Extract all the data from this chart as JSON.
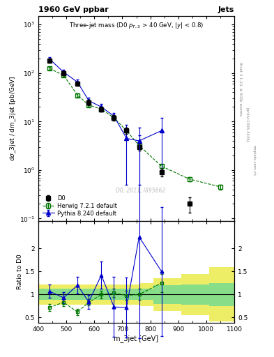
{
  "title_main": "1960 GeV ppbar",
  "title_right": "Jets",
  "watermark": "D0, 2011, I895662",
  "right_label1": "Rivet 3.1.10, ≥ 500k events",
  "right_label2": "[arXiv:1306.3436]",
  "right_label3": "mcplots.cern.ch",
  "d0_x": [
    440,
    490,
    540,
    580,
    625,
    670,
    715,
    760,
    840,
    940,
    1050
  ],
  "d0_y": [
    180,
    100,
    60,
    25,
    18,
    12,
    6.5,
    3.0,
    0.9,
    0.2,
    null
  ],
  "d0_yerr_lo": [
    15,
    10,
    5,
    3,
    2,
    1.5,
    1.0,
    0.5,
    0.15,
    0.07,
    null
  ],
  "d0_yerr_hi": [
    15,
    10,
    5,
    3,
    2,
    1.5,
    1.0,
    0.5,
    0.15,
    0.07,
    null
  ],
  "herwig_x": [
    440,
    490,
    540,
    580,
    625,
    670,
    715,
    760,
    840,
    940,
    1050
  ],
  "herwig_y": [
    125,
    90,
    35,
    22,
    18,
    12,
    6.5,
    3.2,
    1.2,
    0.65,
    0.45
  ],
  "herwig_yerr_lo": [
    8,
    6,
    3,
    2,
    1.5,
    1.0,
    0.5,
    0.3,
    0.1,
    0.06,
    0.05
  ],
  "herwig_yerr_hi": [
    8,
    6,
    3,
    2,
    1.5,
    1.0,
    0.5,
    0.3,
    0.1,
    0.06,
    0.05
  ],
  "pythia_x": [
    440,
    490,
    540,
    580,
    625,
    670,
    715,
    760,
    840
  ],
  "pythia_y": [
    195,
    105,
    65,
    27,
    20,
    13,
    4.5,
    4.0,
    6.5
  ],
  "pythia_yerr_lo": [
    18,
    12,
    8,
    4,
    3,
    2,
    4.0,
    3.5,
    5.5
  ],
  "pythia_yerr_hi": [
    18,
    12,
    8,
    4,
    3,
    2,
    4.0,
    3.5,
    5.5
  ],
  "ratio_herwig_x": [
    440,
    490,
    540,
    580,
    625,
    670,
    715,
    760,
    840,
    940,
    1050
  ],
  "ratio_herwig_y": [
    0.72,
    0.83,
    0.62,
    0.83,
    1.0,
    1.03,
    0.98,
    1.0,
    1.25,
    null,
    null
  ],
  "ratio_herwig_yerr_lo": [
    0.07,
    0.08,
    0.07,
    0.07,
    0.08,
    0.09,
    0.1,
    0.12,
    0.2,
    null,
    null
  ],
  "ratio_herwig_yerr_hi": [
    0.07,
    0.08,
    0.07,
    0.07,
    0.08,
    0.09,
    0.1,
    0.12,
    0.2,
    null,
    null
  ],
  "ratio_pythia_x": [
    440,
    490,
    540,
    580,
    625,
    670,
    715,
    760,
    840
  ],
  "ratio_pythia_y": [
    1.07,
    0.93,
    1.2,
    0.84,
    1.42,
    0.73,
    0.72,
    2.25,
    1.5
  ],
  "ratio_pythia_yerr_lo": [
    0.14,
    0.12,
    0.18,
    0.15,
    0.3,
    0.65,
    0.65,
    2.2,
    1.4
  ],
  "ratio_pythia_yerr_hi": [
    0.14,
    0.12,
    0.18,
    0.15,
    0.3,
    0.65,
    0.65,
    2.2,
    1.4
  ],
  "band_x_edges": [
    400,
    460,
    510,
    560,
    610,
    660,
    710,
    760,
    810,
    910,
    1010,
    1100
  ],
  "band_green_lo": [
    0.88,
    0.88,
    0.88,
    0.88,
    0.88,
    0.88,
    0.88,
    0.88,
    0.8,
    0.78,
    0.75
  ],
  "band_green_hi": [
    1.12,
    1.12,
    1.12,
    1.12,
    1.12,
    1.12,
    1.12,
    1.12,
    1.2,
    1.22,
    1.25
  ],
  "band_yellow_lo": [
    0.78,
    0.78,
    0.78,
    0.78,
    0.78,
    0.78,
    0.78,
    0.75,
    0.65,
    0.55,
    0.42
  ],
  "band_yellow_hi": [
    1.22,
    1.22,
    1.22,
    1.22,
    1.22,
    1.22,
    1.22,
    1.25,
    1.35,
    1.45,
    1.6
  ],
  "xlim": [
    400,
    1100
  ],
  "ylim_main": [
    0.09,
    1500
  ],
  "ylim_ratio": [
    0.38,
    2.6
  ],
  "color_d0": "#000000",
  "color_herwig": "#007700",
  "color_pythia": "#0000cc",
  "color_band_green": "#88dd88",
  "color_band_yellow": "#eeee66",
  "bg_color": "#ffffff"
}
